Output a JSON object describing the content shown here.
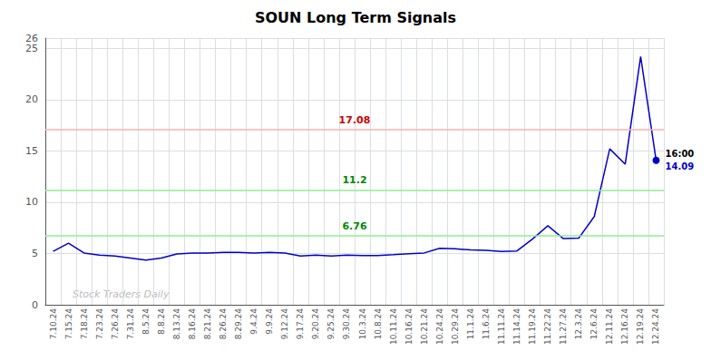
{
  "chart_data": {
    "type": "line",
    "title": "SOUN Long Term Signals",
    "categories": [
      "7.10.24",
      "7.15.24",
      "7.18.24",
      "7.23.24",
      "7.26.24",
      "7.31.24",
      "8.5.24",
      "8.8.24",
      "8.13.24",
      "8.16.24",
      "8.21.24",
      "8.26.24",
      "8.29.24",
      "9.4.24",
      "9.9.24",
      "9.12.24",
      "9.17.24",
      "9.20.24",
      "9.25.24",
      "9.30.24",
      "10.3.24",
      "10.8.24",
      "10.11.24",
      "10.16.24",
      "10.21.24",
      "10.24.24",
      "10.29.24",
      "11.1.24",
      "11.6.24",
      "11.11.24",
      "11.14.24",
      "11.19.24",
      "11.22.24",
      "11.27.24",
      "12.3.24",
      "12.6.24",
      "12.11.24",
      "12.16.24",
      "12.19.24",
      "12.24.24"
    ],
    "values": [
      5.2,
      6.0,
      5.05,
      4.85,
      4.75,
      4.55,
      4.35,
      4.55,
      4.95,
      5.05,
      5.05,
      5.1,
      5.1,
      5.05,
      5.1,
      5.05,
      4.75,
      4.85,
      4.75,
      4.85,
      4.8,
      4.8,
      4.88,
      4.98,
      5.05,
      5.5,
      5.45,
      5.35,
      5.3,
      5.2,
      5.25,
      6.4,
      7.7,
      6.45,
      6.5,
      8.6,
      15.2,
      13.7,
      24.2,
      14.09
    ],
    "color": "#0000cc",
    "ylim": [
      0,
      26
    ],
    "yticks": [
      0,
      5,
      10,
      15,
      20,
      25
    ],
    "grid": true,
    "hlines": [
      {
        "value": 17.08,
        "color": "#ffb0b0",
        "label_color": "#cc0000"
      },
      {
        "value": 11.2,
        "color": "#90ee90",
        "label_color": "#008800"
      },
      {
        "value": 6.76,
        "color": "#90ee90",
        "label_color": "#008800"
      }
    ],
    "last_point": {
      "label": "16:00",
      "value": 14.09,
      "color": "#0000cc"
    },
    "annotations": [
      {
        "text": "Stock Traders Daily",
        "color": "#bbbbbb"
      }
    ]
  }
}
